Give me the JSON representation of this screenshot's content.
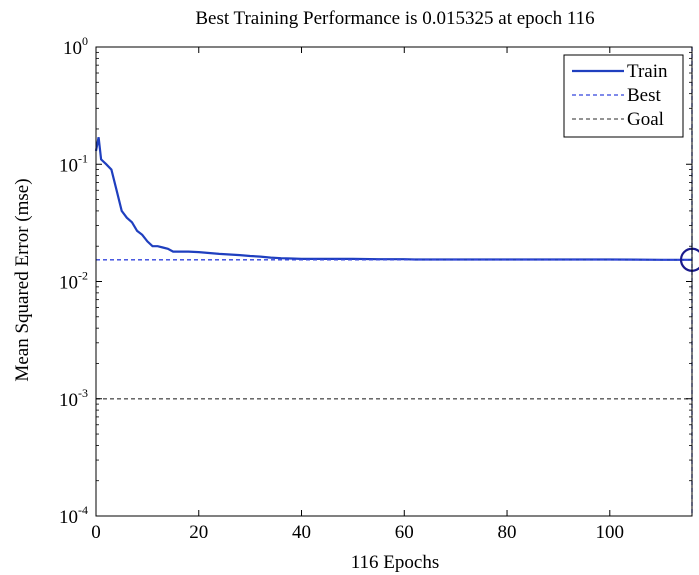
{
  "chart_data": {
    "type": "line",
    "title": "Best Training Performance is 0.015325 at epoch 116",
    "xlabel": "116 Epochs",
    "ylabel": "Mean Squared Error  (mse)",
    "xlim": [
      0,
      116
    ],
    "ylim": [
      0.0001,
      1
    ],
    "yscale": "log",
    "xticks": [
      "0",
      "20",
      "40",
      "60",
      "80",
      "100"
    ],
    "yticks": [
      {
        "base": "10",
        "exp": "0",
        "value": 1
      },
      {
        "base": "10",
        "exp": "-1",
        "value": 0.1
      },
      {
        "base": "10",
        "exp": "-2",
        "value": 0.01
      },
      {
        "base": "10",
        "exp": "-3",
        "value": 0.001
      },
      {
        "base": "10",
        "exp": "-4",
        "value": 0.0001
      }
    ],
    "grid": false,
    "legend_position": "top-right",
    "series": [
      {
        "name": "Train",
        "color": "#1f3fbf",
        "style": "solid",
        "x": [
          0,
          0.5,
          1,
          2,
          3,
          4,
          5,
          6,
          7,
          8,
          9,
          10,
          11,
          12,
          13,
          14,
          15,
          16,
          18,
          20,
          22,
          24,
          26,
          28,
          30,
          32,
          34,
          36,
          38,
          40,
          45,
          50,
          55,
          60,
          62,
          65,
          70,
          80,
          90,
          100,
          110,
          116
        ],
        "y": [
          0.13,
          0.17,
          0.11,
          0.1,
          0.09,
          0.06,
          0.04,
          0.035,
          0.032,
          0.027,
          0.025,
          0.022,
          0.02,
          0.02,
          0.0195,
          0.019,
          0.018,
          0.018,
          0.018,
          0.0178,
          0.0175,
          0.0172,
          0.017,
          0.0168,
          0.0165,
          0.0163,
          0.016,
          0.0158,
          0.0157,
          0.0156,
          0.0156,
          0.0156,
          0.0155,
          0.0155,
          0.0154,
          0.0154,
          0.0154,
          0.0154,
          0.0154,
          0.0154,
          0.0153,
          0.015325
        ]
      },
      {
        "name": "Best",
        "color": "#3344dd",
        "style": "dashed",
        "x": [
          0,
          116
        ],
        "y": [
          0.015325,
          0.015325
        ]
      },
      {
        "name": "Goal",
        "color": "#555555",
        "style": "dashed",
        "x": [
          0,
          116
        ],
        "y": [
          0.001,
          0.001
        ]
      }
    ],
    "best_marker": {
      "x": 116,
      "y": 0.015325,
      "color": "#1a1a8c"
    },
    "best_vline_x": 116
  }
}
